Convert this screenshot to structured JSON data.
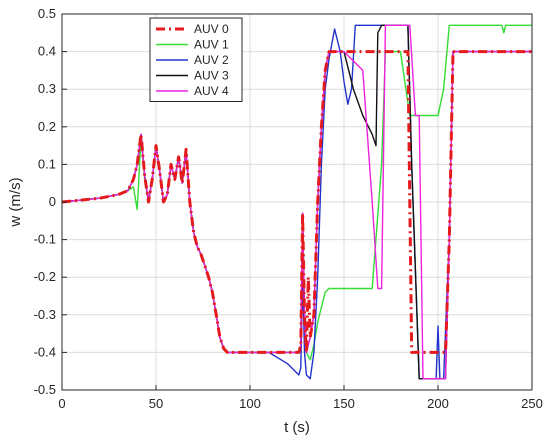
{
  "chart_data": {
    "type": "line",
    "title": "",
    "xlabel": "t (s)",
    "ylabel": "w (m/s)",
    "xlim": [
      0,
      250
    ],
    "ylim": [
      -0.5,
      0.5
    ],
    "xticks": [
      "0",
      "50",
      "100",
      "150",
      "200",
      "250"
    ],
    "yticks": [
      "-0.5",
      "-0.4",
      "-0.3",
      "-0.2",
      "-0.1",
      "0",
      "0.1",
      "0.2",
      "0.3",
      "0.4",
      "0.5"
    ],
    "grid": true,
    "legend_position": "top-left",
    "series": [
      {
        "name": "AUV 0",
        "color": "#e41a1c",
        "dash": "dashdot",
        "x": [
          0,
          10,
          20,
          30,
          35,
          38,
          40,
          42,
          44,
          46,
          48,
          50,
          52,
          54,
          56,
          58,
          60,
          62,
          64,
          66,
          68,
          70,
          72,
          74,
          76,
          78,
          80,
          82,
          84,
          86,
          88,
          100,
          110,
          120,
          126,
          127,
          128,
          129,
          130,
          131,
          132,
          134,
          136,
          138,
          140,
          142,
          150,
          160,
          170,
          180,
          184,
          186,
          190,
          195,
          200,
          204,
          206,
          208,
          220,
          235,
          250
        ],
        "y": [
          0,
          0.005,
          0.01,
          0.02,
          0.03,
          0.06,
          0.1,
          0.18,
          0.07,
          0.0,
          0.06,
          0.15,
          0.08,
          0.0,
          0.02,
          0.1,
          0.06,
          0.12,
          0.05,
          0.14,
          0.0,
          -0.08,
          -0.12,
          -0.14,
          -0.17,
          -0.2,
          -0.24,
          -0.3,
          -0.36,
          -0.39,
          -0.4,
          -0.4,
          -0.4,
          -0.4,
          -0.4,
          -0.38,
          -0.03,
          -0.3,
          -0.4,
          -0.2,
          -0.36,
          -0.3,
          0.0,
          0.2,
          0.35,
          0.4,
          0.4,
          0.4,
          0.4,
          0.4,
          0.4,
          -0.4,
          -0.4,
          -0.4,
          -0.4,
          -0.4,
          -0.1,
          0.4,
          0.4,
          0.4,
          0.4
        ]
      },
      {
        "name": "AUV 1",
        "color": "#33dd33",
        "dash": "solid",
        "x": [
          0,
          10,
          20,
          30,
          35,
          38,
          40,
          42,
          44,
          46,
          48,
          50,
          52,
          54,
          56,
          58,
          60,
          62,
          64,
          66,
          68,
          70,
          72,
          74,
          76,
          78,
          80,
          82,
          84,
          86,
          88,
          100,
          110,
          120,
          126,
          127,
          128,
          129,
          130,
          132,
          134,
          136,
          138,
          140,
          142,
          150,
          160,
          165,
          170,
          172,
          175,
          180,
          185,
          190,
          192,
          195,
          200,
          203,
          206,
          207,
          208,
          210,
          220,
          234,
          235,
          236,
          240,
          248,
          250
        ],
        "y": [
          0,
          0.005,
          0.01,
          0.02,
          0.03,
          0.04,
          -0.02,
          0.17,
          0.06,
          0.0,
          0.06,
          0.15,
          0.08,
          0.0,
          0.02,
          0.1,
          0.06,
          0.12,
          0.05,
          0.14,
          0.0,
          -0.08,
          -0.12,
          -0.14,
          -0.17,
          -0.2,
          -0.24,
          -0.3,
          -0.36,
          -0.39,
          -0.4,
          -0.4,
          -0.4,
          -0.4,
          -0.4,
          -0.38,
          -0.04,
          -0.3,
          -0.4,
          -0.42,
          -0.38,
          -0.32,
          -0.28,
          -0.24,
          -0.23,
          -0.23,
          -0.23,
          -0.23,
          0.1,
          0.4,
          0.4,
          0.4,
          0.23,
          0.23,
          0.23,
          0.23,
          0.23,
          0.3,
          0.47,
          0.47,
          0.47,
          0.47,
          0.47,
          0.47,
          0.45,
          0.47,
          0.47,
          0.47,
          0.47
        ]
      },
      {
        "name": "AUV 2",
        "color": "#2233cc",
        "dash": "solid",
        "x": [
          0,
          10,
          20,
          30,
          35,
          38,
          40,
          42,
          44,
          46,
          48,
          50,
          52,
          54,
          56,
          58,
          60,
          62,
          64,
          66,
          68,
          70,
          72,
          74,
          76,
          78,
          80,
          82,
          84,
          86,
          88,
          100,
          110,
          120,
          124,
          126,
          127,
          128,
          129,
          130,
          132,
          134,
          136,
          138,
          140,
          142,
          145,
          148,
          150,
          152,
          154,
          156,
          158,
          160,
          165,
          170,
          175,
          180,
          184,
          186,
          190,
          195,
          199,
          200,
          201,
          203,
          206,
          208,
          215,
          250
        ],
        "y": [
          0,
          0.005,
          0.01,
          0.02,
          0.03,
          0.06,
          0.1,
          0.18,
          0.07,
          0.0,
          0.06,
          0.15,
          0.08,
          0.0,
          0.02,
          0.1,
          0.06,
          0.12,
          0.05,
          0.14,
          0.0,
          -0.08,
          -0.12,
          -0.14,
          -0.17,
          -0.2,
          -0.24,
          -0.3,
          -0.36,
          -0.39,
          -0.4,
          -0.4,
          -0.4,
          -0.43,
          -0.45,
          -0.46,
          -0.44,
          -0.2,
          -0.4,
          -0.46,
          -0.47,
          -0.4,
          -0.2,
          0.1,
          0.3,
          0.38,
          0.46,
          0.4,
          0.32,
          0.26,
          0.3,
          0.47,
          0.47,
          0.47,
          0.47,
          0.47,
          0.47,
          0.47,
          0.47,
          0.1,
          -0.47,
          -0.47,
          -0.47,
          -0.33,
          -0.47,
          -0.47,
          -0.1,
          0.4,
          0.4,
          0.4
        ]
      },
      {
        "name": "AUV 3",
        "color": "#111111",
        "dash": "solid",
        "x": [
          0,
          10,
          20,
          30,
          35,
          38,
          40,
          42,
          44,
          46,
          48,
          50,
          52,
          54,
          56,
          58,
          60,
          62,
          64,
          66,
          68,
          70,
          72,
          74,
          76,
          78,
          80,
          82,
          84,
          86,
          88,
          100,
          110,
          120,
          126,
          127,
          128,
          129,
          130,
          132,
          134,
          136,
          138,
          140,
          142,
          150,
          155,
          160,
          165,
          167,
          168,
          170,
          180,
          184,
          186,
          190,
          195,
          200,
          204,
          206,
          208,
          220,
          250
        ],
        "y": [
          0,
          0.005,
          0.01,
          0.02,
          0.03,
          0.06,
          0.1,
          0.18,
          0.07,
          0.0,
          0.06,
          0.15,
          0.08,
          0.0,
          0.02,
          0.1,
          0.06,
          0.12,
          0.05,
          0.14,
          0.0,
          -0.08,
          -0.12,
          -0.14,
          -0.17,
          -0.2,
          -0.24,
          -0.3,
          -0.36,
          -0.39,
          -0.4,
          -0.4,
          -0.4,
          -0.4,
          -0.4,
          -0.38,
          -0.03,
          -0.3,
          -0.4,
          -0.36,
          -0.3,
          0.0,
          0.2,
          0.35,
          0.4,
          0.4,
          0.3,
          0.23,
          0.18,
          0.15,
          0.45,
          0.47,
          0.47,
          0.47,
          0.1,
          -0.47,
          -0.47,
          -0.47,
          -0.47,
          -0.1,
          0.4,
          0.4,
          0.4
        ]
      },
      {
        "name": "AUV 4",
        "color": "#ee22dd",
        "dash": "solid",
        "x": [
          0,
          10,
          20,
          30,
          35,
          38,
          40,
          42,
          44,
          46,
          48,
          50,
          52,
          54,
          56,
          58,
          60,
          62,
          64,
          66,
          68,
          70,
          72,
          74,
          76,
          78,
          80,
          82,
          84,
          86,
          88,
          100,
          110,
          120,
          126,
          127,
          128,
          129,
          130,
          132,
          134,
          136,
          138,
          140,
          142,
          150,
          160,
          165,
          168,
          170,
          172,
          175,
          180,
          185,
          188,
          190,
          192,
          195,
          200,
          204,
          206,
          208,
          220,
          250
        ],
        "y": [
          0,
          0.005,
          0.01,
          0.02,
          0.03,
          0.06,
          0.1,
          0.18,
          0.07,
          0.0,
          0.06,
          0.15,
          0.08,
          0.0,
          0.02,
          0.1,
          0.06,
          0.12,
          0.05,
          0.14,
          0.0,
          -0.08,
          -0.12,
          -0.14,
          -0.17,
          -0.2,
          -0.24,
          -0.3,
          -0.36,
          -0.39,
          -0.4,
          -0.4,
          -0.4,
          -0.4,
          -0.4,
          -0.38,
          -0.03,
          -0.3,
          -0.4,
          -0.36,
          -0.3,
          0.0,
          0.2,
          0.35,
          0.4,
          0.4,
          0.35,
          0.0,
          -0.23,
          -0.23,
          0.47,
          0.47,
          0.47,
          0.47,
          0.23,
          0.23,
          -0.47,
          -0.47,
          -0.47,
          -0.47,
          -0.1,
          0.4,
          0.4,
          0.4
        ]
      }
    ]
  }
}
